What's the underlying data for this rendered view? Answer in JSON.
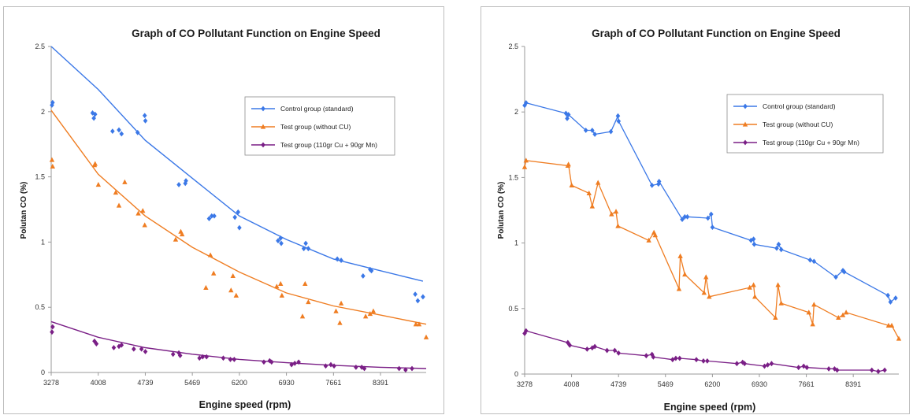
{
  "colors": {
    "control": "#3b78e7",
    "test_no_cu": "#ef7d22",
    "test_cu_mn": "#7a1f86"
  },
  "chart_data": [
    {
      "type": "scatter",
      "trendline": "exponential",
      "title": "Graph of CO Pollutant Function on Engine Speed",
      "xlabel": "Engine speed (rpm)",
      "ylabel": "Polutan CO (%)",
      "xlim": [
        3278,
        9100
      ],
      "ylim": [
        0,
        2.5
      ],
      "x_ticks": [
        "3278",
        "4008",
        "4739",
        "5469",
        "6200",
        "6930",
        "7661",
        "8391"
      ],
      "y_ticks": [
        "0",
        "0.5",
        "1",
        "1.5",
        "2",
        "2.5"
      ],
      "legend_position": "top-right",
      "legend": [
        "Control group (standard)",
        "Test group (without CU)",
        "Test group (110gr Cu + 90gr Mn)"
      ],
      "series": [
        {
          "name": "Control group (standard)",
          "marker": "diamond",
          "color": "control",
          "trend": [
            [
              3278,
              2.5
            ],
            [
              4008,
              2.17
            ],
            [
              4739,
              1.78
            ],
            [
              5469,
              1.49
            ],
            [
              6200,
              1.2
            ],
            [
              6930,
              1.02
            ],
            [
              7661,
              0.87
            ],
            [
              8391,
              0.78
            ],
            [
              9050,
              0.7
            ]
          ],
          "points": [
            [
              3290,
              2.05
            ],
            [
              3300,
              2.07
            ],
            [
              3920,
              1.99
            ],
            [
              3940,
              1.95
            ],
            [
              3960,
              1.98
            ],
            [
              4230,
              1.85
            ],
            [
              4330,
              1.86
            ],
            [
              4370,
              1.83
            ],
            [
              4620,
              1.84
            ],
            [
              4730,
              1.97
            ],
            [
              4740,
              1.93
            ],
            [
              5260,
              1.44
            ],
            [
              5360,
              1.45
            ],
            [
              5370,
              1.47
            ],
            [
              5730,
              1.18
            ],
            [
              5770,
              1.2
            ],
            [
              5810,
              1.2
            ],
            [
              6130,
              1.19
            ],
            [
              6180,
              1.23
            ],
            [
              6200,
              1.11
            ],
            [
              6800,
              1.01
            ],
            [
              6840,
              1.03
            ],
            [
              6850,
              0.99
            ],
            [
              7200,
              0.95
            ],
            [
              7230,
              0.99
            ],
            [
              7270,
              0.95
            ],
            [
              7720,
              0.87
            ],
            [
              7780,
              0.86
            ],
            [
              8120,
              0.74
            ],
            [
              8230,
              0.79
            ],
            [
              8250,
              0.78
            ],
            [
              8930,
              0.6
            ],
            [
              8970,
              0.55
            ],
            [
              9050,
              0.58
            ]
          ]
        },
        {
          "name": "Test group (without CU)",
          "marker": "triangle",
          "color": "test_no_cu",
          "trend": [
            [
              3278,
              2.01
            ],
            [
              4008,
              1.52
            ],
            [
              4739,
              1.2
            ],
            [
              5469,
              0.96
            ],
            [
              6200,
              0.77
            ],
            [
              6930,
              0.61
            ],
            [
              7661,
              0.51
            ],
            [
              8391,
              0.44
            ],
            [
              9100,
              0.37
            ]
          ],
          "points": [
            [
              3290,
              1.63
            ],
            [
              3300,
              1.58
            ],
            [
              3950,
              1.59
            ],
            [
              3960,
              1.6
            ],
            [
              4010,
              1.44
            ],
            [
              4280,
              1.38
            ],
            [
              4330,
              1.28
            ],
            [
              4420,
              1.46
            ],
            [
              4630,
              1.22
            ],
            [
              4700,
              1.24
            ],
            [
              4730,
              1.13
            ],
            [
              5210,
              1.02
            ],
            [
              5290,
              1.08
            ],
            [
              5310,
              1.06
            ],
            [
              5680,
              0.65
            ],
            [
              5750,
              0.9
            ],
            [
              5800,
              0.76
            ],
            [
              6070,
              0.63
            ],
            [
              6100,
              0.74
            ],
            [
              6150,
              0.59
            ],
            [
              6780,
              0.66
            ],
            [
              6840,
              0.68
            ],
            [
              6860,
              0.59
            ],
            [
              7180,
              0.43
            ],
            [
              7220,
              0.68
            ],
            [
              7270,
              0.54
            ],
            [
              7700,
              0.47
            ],
            [
              7760,
              0.38
            ],
            [
              7780,
              0.53
            ],
            [
              8160,
              0.43
            ],
            [
              8230,
              0.45
            ],
            [
              8280,
              0.47
            ],
            [
              8940,
              0.37
            ],
            [
              8990,
              0.37
            ],
            [
              9100,
              0.27
            ]
          ]
        },
        {
          "name": "Test group (110gr Cu + 90gr Mn)",
          "marker": "diamond",
          "color": "test_cu_mn",
          "trend": [
            [
              3278,
              0.39
            ],
            [
              4008,
              0.27
            ],
            [
              4739,
              0.19
            ],
            [
              5469,
              0.14
            ],
            [
              6200,
              0.1
            ],
            [
              6930,
              0.075
            ],
            [
              7661,
              0.055
            ],
            [
              8391,
              0.04
            ],
            [
              9100,
              0.03
            ]
          ],
          "points": [
            [
              3290,
              0.31
            ],
            [
              3300,
              0.35
            ],
            [
              3950,
              0.24
            ],
            [
              3980,
              0.22
            ],
            [
              4250,
              0.19
            ],
            [
              4330,
              0.2
            ],
            [
              4370,
              0.21
            ],
            [
              4560,
              0.18
            ],
            [
              4680,
              0.18
            ],
            [
              4740,
              0.16
            ],
            [
              5170,
              0.14
            ],
            [
              5260,
              0.15
            ],
            [
              5280,
              0.13
            ],
            [
              5580,
              0.11
            ],
            [
              5630,
              0.12
            ],
            [
              5690,
              0.12
            ],
            [
              5950,
              0.11
            ],
            [
              6060,
              0.1
            ],
            [
              6120,
              0.1
            ],
            [
              6580,
              0.08
            ],
            [
              6670,
              0.09
            ],
            [
              6700,
              0.08
            ],
            [
              7010,
              0.06
            ],
            [
              7060,
              0.07
            ],
            [
              7120,
              0.08
            ],
            [
              7540,
              0.05
            ],
            [
              7620,
              0.06
            ],
            [
              7670,
              0.05
            ],
            [
              8010,
              0.04
            ],
            [
              8100,
              0.04
            ],
            [
              8140,
              0.03
            ],
            [
              8680,
              0.03
            ],
            [
              8780,
              0.02
            ],
            [
              8880,
              0.03
            ]
          ]
        }
      ]
    },
    {
      "type": "line",
      "title": "Graph of CO Pollutant Function on Engine Speed",
      "xlabel": "Engine speed (rpm)",
      "ylabel": "Polutan CO (%)",
      "xlim": [
        3278,
        9100
      ],
      "ylim": [
        0,
        2.5
      ],
      "x_ticks": [
        "3278",
        "4008",
        "4739",
        "5469",
        "6200",
        "6930",
        "7661",
        "8391"
      ],
      "y_ticks": [
        "0",
        "0.5",
        "1",
        "1.5",
        "2",
        "2.5"
      ],
      "legend_position": "top-right",
      "legend": [
        "Control group (standard)",
        "Test group (without CU)",
        "Test group (110gr Cu + 90gr Mn)"
      ],
      "series": [
        {
          "name": "Control group (standard)",
          "marker": "diamond",
          "color": "control",
          "points": [
            [
              3278,
              2.05
            ],
            [
              3300,
              2.07
            ],
            [
              3920,
              1.99
            ],
            [
              3940,
              1.95
            ],
            [
              3960,
              1.98
            ],
            [
              4230,
              1.86
            ],
            [
              4330,
              1.86
            ],
            [
              4370,
              1.83
            ],
            [
              4620,
              1.85
            ],
            [
              4730,
              1.97
            ],
            [
              4740,
              1.93
            ],
            [
              5260,
              1.44
            ],
            [
              5360,
              1.45
            ],
            [
              5370,
              1.47
            ],
            [
              5730,
              1.18
            ],
            [
              5770,
              1.2
            ],
            [
              5810,
              1.2
            ],
            [
              6130,
              1.19
            ],
            [
              6180,
              1.22
            ],
            [
              6200,
              1.12
            ],
            [
              6800,
              1.02
            ],
            [
              6840,
              1.03
            ],
            [
              6850,
              0.99
            ],
            [
              7200,
              0.96
            ],
            [
              7230,
              0.99
            ],
            [
              7270,
              0.95
            ],
            [
              7720,
              0.87
            ],
            [
              7780,
              0.86
            ],
            [
              8120,
              0.74
            ],
            [
              8230,
              0.79
            ],
            [
              8250,
              0.78
            ],
            [
              8930,
              0.6
            ],
            [
              8970,
              0.55
            ],
            [
              9050,
              0.58
            ]
          ]
        },
        {
          "name": "Test group (without CU)",
          "marker": "triangle",
          "color": "test_no_cu",
          "points": [
            [
              3278,
              1.58
            ],
            [
              3300,
              1.63
            ],
            [
              3950,
              1.59
            ],
            [
              3960,
              1.6
            ],
            [
              4010,
              1.44
            ],
            [
              4280,
              1.38
            ],
            [
              4330,
              1.28
            ],
            [
              4420,
              1.46
            ],
            [
              4630,
              1.22
            ],
            [
              4700,
              1.24
            ],
            [
              4730,
              1.13
            ],
            [
              5210,
              1.02
            ],
            [
              5290,
              1.08
            ],
            [
              5310,
              1.06
            ],
            [
              5680,
              0.65
            ],
            [
              5700,
              0.9
            ],
            [
              5770,
              0.76
            ],
            [
              6070,
              0.62
            ],
            [
              6100,
              0.74
            ],
            [
              6150,
              0.59
            ],
            [
              6780,
              0.66
            ],
            [
              6840,
              0.68
            ],
            [
              6860,
              0.59
            ],
            [
              7180,
              0.43
            ],
            [
              7220,
              0.68
            ],
            [
              7270,
              0.54
            ],
            [
              7700,
              0.47
            ],
            [
              7760,
              0.38
            ],
            [
              7780,
              0.53
            ],
            [
              8160,
              0.43
            ],
            [
              8230,
              0.45
            ],
            [
              8280,
              0.47
            ],
            [
              8940,
              0.37
            ],
            [
              8990,
              0.37
            ],
            [
              9100,
              0.27
            ]
          ]
        },
        {
          "name": "Test group (110gr Cu + 90gr Mn)",
          "marker": "diamond",
          "color": "test_cu_mn",
          "points": [
            [
              3278,
              0.31
            ],
            [
              3300,
              0.33
            ],
            [
              3950,
              0.24
            ],
            [
              3980,
              0.22
            ],
            [
              4250,
              0.19
            ],
            [
              4330,
              0.2
            ],
            [
              4370,
              0.21
            ],
            [
              4560,
              0.18
            ],
            [
              4680,
              0.18
            ],
            [
              4740,
              0.16
            ],
            [
              5170,
              0.14
            ],
            [
              5260,
              0.15
            ],
            [
              5280,
              0.13
            ],
            [
              5580,
              0.11
            ],
            [
              5630,
              0.12
            ],
            [
              5690,
              0.12
            ],
            [
              5950,
              0.11
            ],
            [
              6060,
              0.1
            ],
            [
              6120,
              0.1
            ],
            [
              6580,
              0.08
            ],
            [
              6670,
              0.09
            ],
            [
              6700,
              0.08
            ],
            [
              7010,
              0.06
            ],
            [
              7060,
              0.07
            ],
            [
              7120,
              0.08
            ],
            [
              7540,
              0.05
            ],
            [
              7620,
              0.06
            ],
            [
              7670,
              0.05
            ],
            [
              8010,
              0.04
            ],
            [
              8100,
              0.04
            ],
            [
              8140,
              0.03
            ],
            [
              8680,
              0.03
            ],
            [
              8780,
              0.02
            ],
            [
              8880,
              0.03
            ]
          ]
        }
      ]
    }
  ]
}
